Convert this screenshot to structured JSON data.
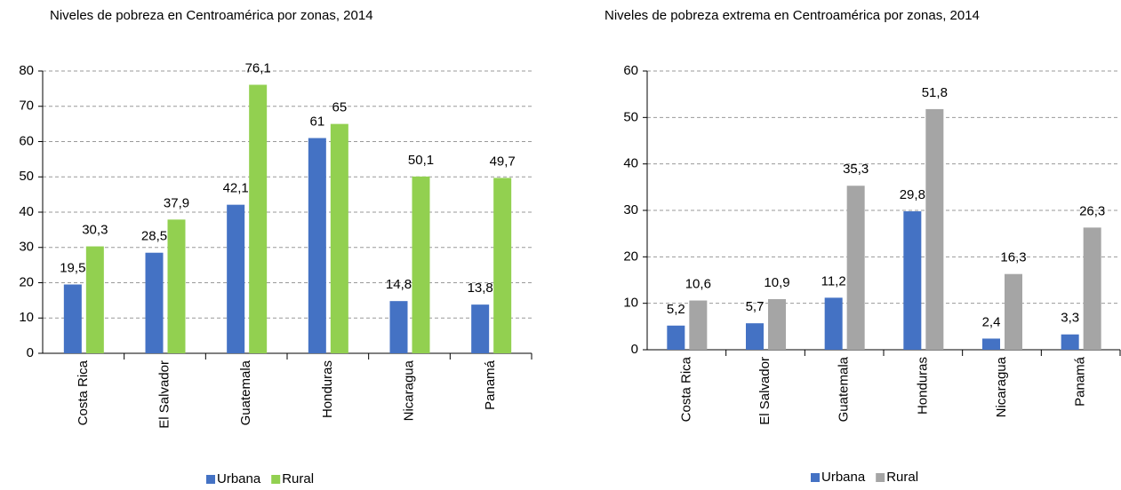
{
  "chart_data": [
    {
      "type": "bar",
      "title": "Niveles de pobreza en Centroamérica por zonas, 2014",
      "categories": [
        "Costa Rica",
        "El Salvador",
        "Guatemala",
        "Honduras",
        "Nicaragua",
        "Panamá"
      ],
      "series": [
        {
          "name": "Urbana",
          "color": "#4472c4",
          "values": [
            19.5,
            28.5,
            42.1,
            61,
            14.8,
            13.8
          ],
          "value_labels": [
            "19,5",
            "28,5",
            "42,1",
            "61",
            "14,8",
            "13,8"
          ]
        },
        {
          "name": "Rural",
          "color": "#92d050",
          "values": [
            30.3,
            37.9,
            76.1,
            65,
            50.1,
            49.7
          ],
          "value_labels": [
            "30,3",
            "37,9",
            "76,1",
            "65",
            "50,1",
            "49,7"
          ]
        }
      ],
      "ylim": [
        0,
        80
      ],
      "yticks": [
        0,
        10,
        20,
        30,
        40,
        50,
        60,
        70,
        80
      ],
      "grid": true,
      "legend": "bottom"
    },
    {
      "type": "bar",
      "title": "Niveles de pobreza extrema en Centroamérica por zonas, 2014",
      "categories": [
        "Costa Rica",
        "El Salvador",
        "Guatemala",
        "Honduras",
        "Nicaragua",
        "Panamá"
      ],
      "series": [
        {
          "name": "Urbana",
          "color": "#4472c4",
          "values": [
            5.2,
            5.7,
            11.2,
            29.8,
            2.4,
            3.3
          ],
          "value_labels": [
            "5,2",
            "5,7",
            "11,2",
            "29,8",
            "2,4",
            "3,3"
          ]
        },
        {
          "name": "Rural",
          "color": "#a5a5a5",
          "values": [
            10.6,
            10.9,
            35.3,
            51.8,
            16.3,
            26.3
          ],
          "value_labels": [
            "10,6",
            "10,9",
            "35,3",
            "51,8",
            "16,3",
            "26,3"
          ]
        }
      ],
      "ylim": [
        0,
        60
      ],
      "yticks": [
        0,
        10,
        20,
        30,
        40,
        50,
        60
      ],
      "grid": true,
      "legend": "bottom"
    }
  ]
}
